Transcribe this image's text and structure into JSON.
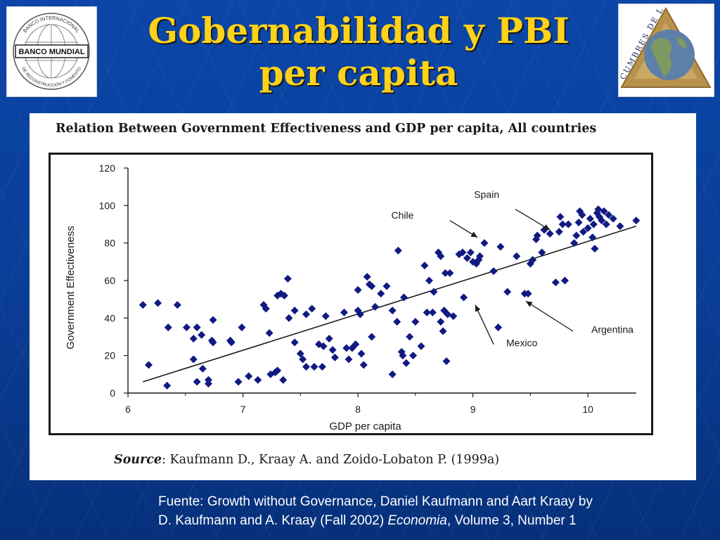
{
  "slide": {
    "title_line1": "Gobernabilidad  y PBI",
    "title_line2": "per capita",
    "logo_left_label": "BANCO MUNDIAL",
    "logo_left_ring_top": "BANCO INTERNACIONAL",
    "logo_left_ring_bottom": "DE RECONSTRUCCIÓN Y FOMENTO",
    "logo_right_label": "CUMBRES DE LAS AMÉRICAS",
    "footer_line1": "Fuente: Growth without Governance, Daniel Kaufmann and Aart Kraay by",
    "footer_line2_pre": "D. Kaufmann and A. Kraay (Fall 2002) ",
    "footer_line2_italic": "Economia",
    "footer_line2_post": ", Volume 3, Number 1",
    "colors": {
      "background": "#0a3d96",
      "title": "#ffd21a",
      "points": "#101a80"
    }
  },
  "chart_data": {
    "type": "scatter",
    "title": "Relation Between Government Effectiveness and GDP per capita, All countries",
    "xlabel": "GDP per capita",
    "ylabel": "Government Effectiveness",
    "xlim": [
      6,
      10.5
    ],
    "ylim": [
      0,
      120
    ],
    "xticks": [
      "6",
      "7",
      "8",
      "9",
      "10"
    ],
    "yticks": [
      "0",
      "20",
      "40",
      "60",
      "80",
      "100",
      "120"
    ],
    "grid": false,
    "source_label": "Source",
    "source_text": ": Kaufmann D., Kraay A. and Zoido-Lobaton P. (1999a)",
    "trendline": {
      "x": [
        6.13,
        10.42
      ],
      "y": [
        6,
        89
      ]
    },
    "annotations": [
      {
        "label": "Spain",
        "text_x": 9.01,
        "text_y": 104,
        "arrow_from": [
          9.37,
          98
        ],
        "arrow_to": [
          9.67,
          87
        ]
      },
      {
        "label": "Chile",
        "text_x": 8.29,
        "text_y": 93,
        "arrow_from": [
          8.8,
          92
        ],
        "arrow_to": [
          9.04,
          83
        ]
      },
      {
        "label": "Mexico",
        "text_x": 9.29,
        "text_y": 25,
        "arrow_from": [
          9.18,
          26
        ],
        "arrow_to": [
          9.02,
          47
        ]
      },
      {
        "label": "Argentina",
        "text_x": 10.03,
        "text_y": 32,
        "arrow_from": [
          9.87,
          33
        ],
        "arrow_to": [
          9.46,
          49
        ]
      }
    ],
    "points": [
      [
        6.13,
        47
      ],
      [
        6.26,
        48
      ],
      [
        6.43,
        47
      ],
      [
        6.18,
        15
      ],
      [
        6.34,
        4
      ],
      [
        6.35,
        35
      ],
      [
        6.51,
        35
      ],
      [
        6.57,
        29
      ],
      [
        6.57,
        18
      ],
      [
        6.6,
        35
      ],
      [
        6.64,
        31
      ],
      [
        6.65,
        13
      ],
      [
        6.6,
        6
      ],
      [
        6.7,
        7
      ],
      [
        6.7,
        5
      ],
      [
        6.73,
        28
      ],
      [
        6.74,
        27
      ],
      [
        6.74,
        39
      ],
      [
        6.89,
        28
      ],
      [
        6.9,
        27
      ],
      [
        6.99,
        35
      ],
      [
        6.96,
        6
      ],
      [
        7.05,
        9
      ],
      [
        7.13,
        7
      ],
      [
        7.18,
        47
      ],
      [
        7.2,
        45
      ],
      [
        7.23,
        32
      ],
      [
        7.24,
        10
      ],
      [
        7.28,
        11
      ],
      [
        7.3,
        12
      ],
      [
        7.3,
        52
      ],
      [
        7.33,
        53
      ],
      [
        7.36,
        52
      ],
      [
        7.39,
        61
      ],
      [
        7.35,
        7
      ],
      [
        7.4,
        40
      ],
      [
        7.45,
        44
      ],
      [
        7.45,
        27
      ],
      [
        7.5,
        21
      ],
      [
        7.52,
        18
      ],
      [
        7.55,
        14
      ],
      [
        7.55,
        42
      ],
      [
        7.6,
        45
      ],
      [
        7.62,
        14
      ],
      [
        7.66,
        26
      ],
      [
        7.69,
        14
      ],
      [
        7.7,
        25
      ],
      [
        7.72,
        41
      ],
      [
        7.75,
        29
      ],
      [
        7.78,
        23
      ],
      [
        7.8,
        19
      ],
      [
        7.88,
        43
      ],
      [
        7.9,
        24
      ],
      [
        7.92,
        18
      ],
      [
        7.95,
        24
      ],
      [
        7.98,
        26
      ],
      [
        8.0,
        44
      ],
      [
        8.0,
        55
      ],
      [
        8.02,
        42
      ],
      [
        8.03,
        21
      ],
      [
        8.05,
        15
      ],
      [
        8.08,
        62
      ],
      [
        8.1,
        58
      ],
      [
        8.12,
        30
      ],
      [
        8.12,
        57
      ],
      [
        8.15,
        46
      ],
      [
        8.2,
        53
      ],
      [
        8.25,
        57
      ],
      [
        8.3,
        44
      ],
      [
        8.3,
        10
      ],
      [
        8.34,
        38
      ],
      [
        8.35,
        76
      ],
      [
        8.38,
        22
      ],
      [
        8.39,
        20
      ],
      [
        8.4,
        51
      ],
      [
        8.42,
        16
      ],
      [
        8.45,
        30
      ],
      [
        8.48,
        20
      ],
      [
        8.5,
        38
      ],
      [
        8.55,
        25
      ],
      [
        8.58,
        68
      ],
      [
        8.6,
        43
      ],
      [
        8.62,
        60
      ],
      [
        8.65,
        43
      ],
      [
        8.66,
        54
      ],
      [
        8.7,
        75
      ],
      [
        8.72,
        73
      ],
      [
        8.72,
        38
      ],
      [
        8.74,
        33
      ],
      [
        8.75,
        44
      ],
      [
        8.76,
        64
      ],
      [
        8.77,
        17
      ],
      [
        8.78,
        42
      ],
      [
        8.8,
        64
      ],
      [
        8.83,
        41
      ],
      [
        8.88,
        74
      ],
      [
        8.91,
        75
      ],
      [
        8.92,
        51
      ],
      [
        8.95,
        72
      ],
      [
        8.98,
        75
      ],
      [
        9.0,
        70
      ],
      [
        9.03,
        69
      ],
      [
        9.05,
        71
      ],
      [
        9.06,
        73
      ],
      [
        9.1,
        80
      ],
      [
        9.18,
        65
      ],
      [
        9.22,
        35
      ],
      [
        9.24,
        78
      ],
      [
        9.3,
        54
      ],
      [
        9.38,
        73
      ],
      [
        9.45,
        53
      ],
      [
        9.48,
        53
      ],
      [
        9.5,
        69
      ],
      [
        9.52,
        71
      ],
      [
        9.55,
        82
      ],
      [
        9.56,
        84
      ],
      [
        9.6,
        75
      ],
      [
        9.62,
        87
      ],
      [
        9.67,
        85
      ],
      [
        9.72,
        59
      ],
      [
        9.75,
        86
      ],
      [
        9.76,
        94
      ],
      [
        9.78,
        90
      ],
      [
        9.8,
        60
      ],
      [
        9.83,
        90
      ],
      [
        9.88,
        80
      ],
      [
        9.9,
        84
      ],
      [
        9.92,
        91
      ],
      [
        9.93,
        97
      ],
      [
        9.95,
        95
      ],
      [
        9.96,
        86
      ],
      [
        10.0,
        88
      ],
      [
        10.02,
        93
      ],
      [
        10.04,
        83
      ],
      [
        10.05,
        90
      ],
      [
        10.06,
        77
      ],
      [
        10.08,
        96
      ],
      [
        10.09,
        98
      ],
      [
        10.1,
        94
      ],
      [
        10.12,
        92
      ],
      [
        10.14,
        97
      ],
      [
        10.16,
        90
      ],
      [
        10.18,
        95
      ],
      [
        10.22,
        93
      ],
      [
        10.28,
        89
      ],
      [
        10.42,
        92
      ]
    ]
  }
}
